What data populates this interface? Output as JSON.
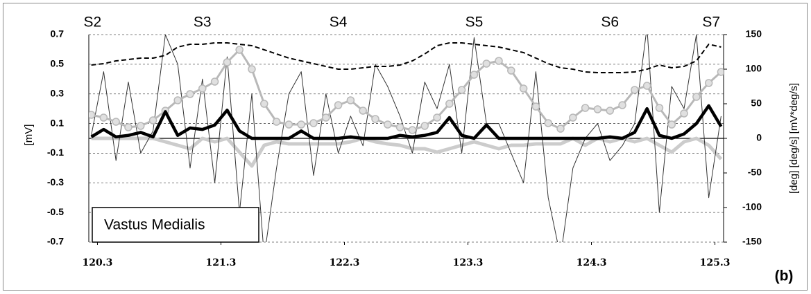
{
  "chart_data": {
    "type": "line",
    "ylabel": "[mV]",
    "y2label": "[deg] [deg/s] [mV*deg/s]",
    "annotations": [
      {
        "text": "S2",
        "x": 120.26
      },
      {
        "text": "S3",
        "x": 121.15
      },
      {
        "text": "S4",
        "x": 122.25
      },
      {
        "text": "S5",
        "x": 123.35
      },
      {
        "text": "S6",
        "x": 124.45
      },
      {
        "text": "S7",
        "x": 125.27
      }
    ],
    "label_box": "Vastus Medialis",
    "panel": "(b)",
    "x": [
      120.25,
      120.35,
      120.45,
      120.55,
      120.65,
      120.75,
      120.85,
      120.95,
      121.05,
      121.15,
      121.25,
      121.35,
      121.45,
      121.55,
      121.65,
      121.75,
      121.85,
      121.95,
      122.05,
      122.15,
      122.25,
      122.35,
      122.45,
      122.55,
      122.65,
      122.75,
      122.85,
      122.95,
      123.05,
      123.15,
      123.25,
      123.35,
      123.45,
      123.55,
      123.65,
      123.75,
      123.85,
      123.95,
      124.05,
      124.15,
      124.25,
      124.35,
      124.45,
      124.55,
      124.65,
      124.75,
      124.85,
      124.95,
      125.05,
      125.15,
      125.25,
      125.35
    ],
    "xlim": [
      120.23,
      125.37
    ],
    "xticks": [
      120.3,
      121.3,
      122.3,
      123.3,
      124.3,
      125.3
    ],
    "ylim": [
      -0.7,
      0.7
    ],
    "yticks": [
      -0.7,
      -0.5,
      -0.3,
      -0.1,
      0.1,
      0.3,
      0.5,
      0.7
    ],
    "y2lim": [
      -150,
      150
    ],
    "y2ticks": [
      -150,
      -100,
      -50,
      0,
      50,
      100,
      150
    ],
    "grid": true,
    "series": [
      {
        "color": "#cccccc",
        "style": "thick",
        "axis": "y2",
        "values": [
          0,
          0,
          0,
          0,
          0,
          0,
          -5,
          -10,
          -15,
          0,
          -5,
          0,
          -20,
          -40,
          -10,
          -5,
          -8,
          -8,
          -8,
          -8,
          -8,
          -5,
          0,
          -5,
          -8,
          -10,
          -15,
          -15,
          -20,
          -15,
          -10,
          -5,
          -10,
          -15,
          -10,
          -10,
          -8,
          -8,
          -8,
          0,
          -10,
          0,
          -5,
          0,
          -5,
          0,
          -10,
          -20,
          -5,
          0,
          -10,
          -30
        ]
      },
      {
        "color": "#333333",
        "style": "thin",
        "values": [
          0.02,
          0.45,
          -0.15,
          0.38,
          -0.1,
          0.05,
          0.7,
          0.5,
          -0.2,
          0.4,
          -0.3,
          0.55,
          -0.5,
          0.3,
          -0.8,
          -0.2,
          0.3,
          0.45,
          -0.25,
          0.3,
          -0.1,
          0.15,
          -0.05,
          0.5,
          0.35,
          0.15,
          -0.1,
          0.38,
          0.2,
          0.5,
          -0.1,
          0.68,
          0.1,
          0.1,
          -0.1,
          -0.3,
          0.45,
          -0.4,
          -0.8,
          -0.2,
          0,
          0.1,
          -0.15,
          -0.05,
          0.1,
          0.75,
          -0.5,
          0.35,
          0.2,
          0.7,
          -0.4,
          0.15
        ]
      },
      {
        "color": "#b8b8b8",
        "style": "markers",
        "axis": "y2",
        "values": [
          34,
          30,
          24,
          16,
          18,
          26,
          40,
          55,
          64,
          72,
          82,
          110,
          128,
          100,
          50,
          24,
          20,
          20,
          22,
          30,
          48,
          55,
          40,
          28,
          20,
          16,
          12,
          18,
          30,
          50,
          70,
          92,
          108,
          112,
          98,
          72,
          46,
          22,
          14,
          30,
          44,
          42,
          40,
          48,
          70,
          76,
          44,
          20,
          36,
          60,
          80,
          96
        ]
      },
      {
        "color": "#000000",
        "style": "dashed",
        "axis": "y2",
        "values": [
          106,
          108,
          112,
          114,
          116,
          116,
          120,
          132,
          136,
          136,
          138,
          138,
          136,
          134,
          128,
          122,
          116,
          112,
          108,
          104,
          100,
          100,
          102,
          104,
          104,
          106,
          112,
          122,
          134,
          138,
          138,
          136,
          134,
          132,
          128,
          124,
          116,
          108,
          102,
          100,
          96,
          95,
          95,
          95,
          96,
          100,
          106,
          102,
          104,
          112,
          136,
          132
        ]
      },
      {
        "color": "#000000",
        "style": "thick",
        "values": [
          0.01,
          0.06,
          0.01,
          0.02,
          0.04,
          0.01,
          0.18,
          0.02,
          0.07,
          0.06,
          0.09,
          0.19,
          0.05,
          0,
          0,
          0,
          0,
          0.05,
          0,
          0,
          0,
          0.01,
          0,
          0,
          0,
          0.02,
          0.01,
          0.02,
          0.04,
          0.14,
          0.02,
          0,
          0.09,
          0,
          0,
          0,
          0,
          0,
          0,
          0,
          0,
          0,
          0.01,
          0,
          0.04,
          0.2,
          0.02,
          0,
          0.03,
          0.1,
          0.22,
          0.08
        ]
      }
    ]
  }
}
